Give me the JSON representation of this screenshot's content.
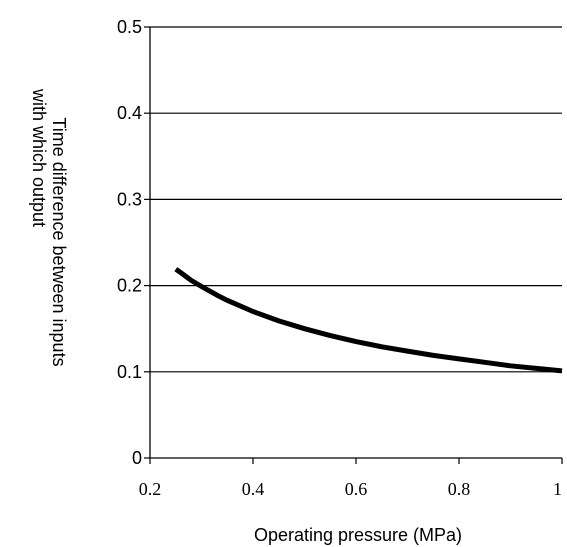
{
  "chart_data": {
    "type": "line",
    "title": "",
    "xlabel": "Operating pressure (MPa)",
    "ylabel_lines": [
      "Time difference between inputs",
      "with which output"
    ],
    "xlim": [
      0.2,
      1.0
    ],
    "ylim": [
      0,
      0.5
    ],
    "x_ticks": [
      "0.2",
      "0.4",
      "0.6",
      "0.8",
      "1"
    ],
    "y_ticks": [
      "0",
      "0.1",
      "0.2",
      "0.3",
      "0.4",
      "0.5"
    ],
    "grid": "horizontal",
    "legend": "none",
    "series": [
      {
        "color": "#000000",
        "x": [
          0.25,
          0.26,
          0.28,
          0.3,
          0.33,
          0.35,
          0.4,
          0.45,
          0.5,
          0.55,
          0.6,
          0.65,
          0.7,
          0.75,
          0.8,
          0.85,
          0.9,
          0.95,
          1.0
        ],
        "y": [
          0.219,
          0.215,
          0.206,
          0.199,
          0.189,
          0.183,
          0.17,
          0.159,
          0.15,
          0.142,
          0.135,
          0.129,
          0.124,
          0.119,
          0.115,
          0.111,
          0.107,
          0.104,
          0.101
        ]
      }
    ]
  }
}
